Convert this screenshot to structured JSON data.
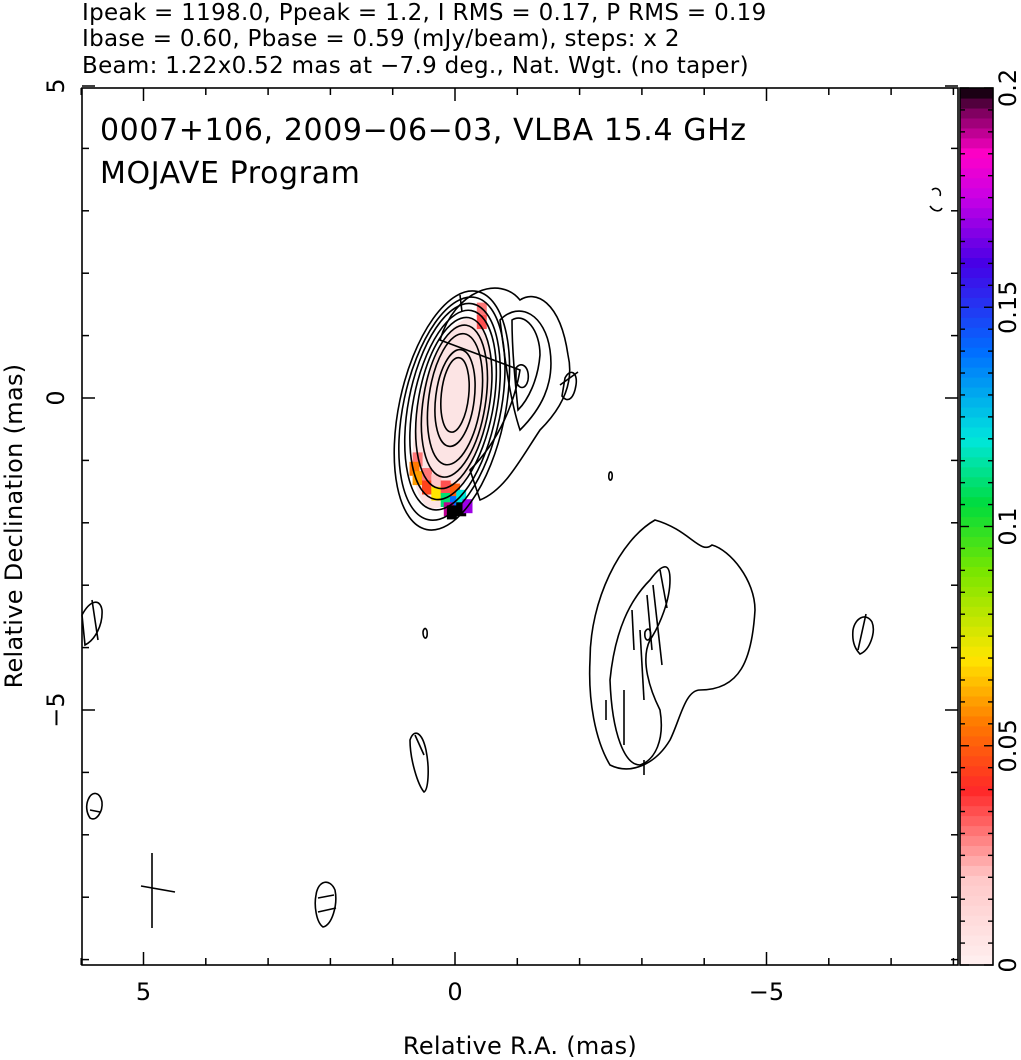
{
  "header": {
    "line1": "Ipeak = 1198.0, Ppeak = 1.2, I RMS = 0.17, P RMS = 0.19",
    "line2": "Ibase = 0.60, Pbase = 0.59 (mJy/beam), steps: x 2",
    "line3": "Beam: 1.22x0.52 mas at −7.9 deg., Nat. Wgt. (no taper)"
  },
  "plot": {
    "title_line1": "0007+106, 2009−06−03, VLBA 15.4 GHz",
    "title_line2": "MOJAVE Program"
  },
  "chart_data": {
    "type": "contour",
    "xlabel": "Relative R.A. (mas)",
    "ylabel": "Relative Declination (mas)",
    "xlim": [
      6.0,
      -8.0
    ],
    "ylim": [
      -9.1,
      5.0
    ],
    "x_ticks": [
      5,
      0,
      -5
    ],
    "x_tick_labels": [
      "5",
      "0",
      "−5"
    ],
    "y_ticks": [
      5,
      0,
      -5
    ],
    "y_tick_labels": [
      "5",
      "0",
      "−5"
    ],
    "colorbar": {
      "range": [
        0,
        0.2
      ],
      "ticks": [
        0,
        0.05,
        0.1,
        0.15,
        0.2
      ],
      "tick_labels": [
        "0",
        "0.05",
        "0.1",
        "0.15",
        "0.2"
      ]
    },
    "contour_levels_mJy": [
      0.6,
      1.2,
      2.4,
      4.8,
      9.6,
      19.2,
      38.4,
      76.8,
      153.6,
      307.2,
      614.4
    ],
    "core": {
      "x": 0.0,
      "y": 0.0,
      "contours": [
        {
          "cx": 0.05,
          "cy": -0.2,
          "rx": 0.85,
          "ry": 1.95,
          "rot": 12
        },
        {
          "cx": 0.05,
          "cy": -0.17,
          "rx": 0.78,
          "ry": 1.82,
          "rot": 12
        },
        {
          "cx": 0.04,
          "cy": -0.14,
          "rx": 0.71,
          "ry": 1.68,
          "rot": 11
        },
        {
          "cx": 0.03,
          "cy": -0.11,
          "rx": 0.64,
          "ry": 1.54,
          "rot": 11
        },
        {
          "cx": 0.02,
          "cy": -0.08,
          "rx": 0.57,
          "ry": 1.39,
          "rot": 10
        },
        {
          "cx": 0.01,
          "cy": -0.05,
          "rx": 0.5,
          "ry": 1.23,
          "rot": 9
        },
        {
          "cx": 0.0,
          "cy": -0.02,
          "rx": 0.42,
          "ry": 1.06,
          "rot": 8
        },
        {
          "cx": 0.0,
          "cy": 0.0,
          "rx": 0.31,
          "ry": 0.78,
          "rot": 7
        },
        {
          "cx": 0.0,
          "cy": 0.05,
          "rx": 0.22,
          "ry": 0.6,
          "rot": 6
        }
      ]
    },
    "polarization_fraction_pixels": [
      {
        "x": -0.43,
        "y": 1.4,
        "v": 0.03
      },
      {
        "x": -0.43,
        "y": 1.2,
        "v": 0.035
      },
      {
        "x": 0.6,
        "y": -1.0,
        "v": 0.03
      },
      {
        "x": 0.65,
        "y": -1.15,
        "v": 0.055
      },
      {
        "x": 0.6,
        "y": -1.3,
        "v": 0.06
      },
      {
        "x": 0.45,
        "y": -1.25,
        "v": 0.03
      },
      {
        "x": 0.45,
        "y": -1.45,
        "v": 0.045
      },
      {
        "x": 0.3,
        "y": -1.35,
        "v": 0.02
      },
      {
        "x": 0.3,
        "y": -1.55,
        "v": 0.07
      },
      {
        "x": 0.15,
        "y": -1.45,
        "v": 0.035
      },
      {
        "x": 0.15,
        "y": -1.65,
        "v": 0.11
      },
      {
        "x": 0.0,
        "y": -1.5,
        "v": 0.05
      },
      {
        "x": 0.0,
        "y": -1.7,
        "v": 0.14
      },
      {
        "x": -0.1,
        "y": -1.6,
        "v": 0.12
      },
      {
        "x": -0.1,
        "y": -1.8,
        "v": 0.2
      },
      {
        "x": 0.1,
        "y": -1.8,
        "v": 0.19
      },
      {
        "x": 0.05,
        "y": -1.85,
        "v": 0.2
      },
      {
        "x": -0.2,
        "y": -1.75,
        "v": 0.17
      }
    ]
  }
}
